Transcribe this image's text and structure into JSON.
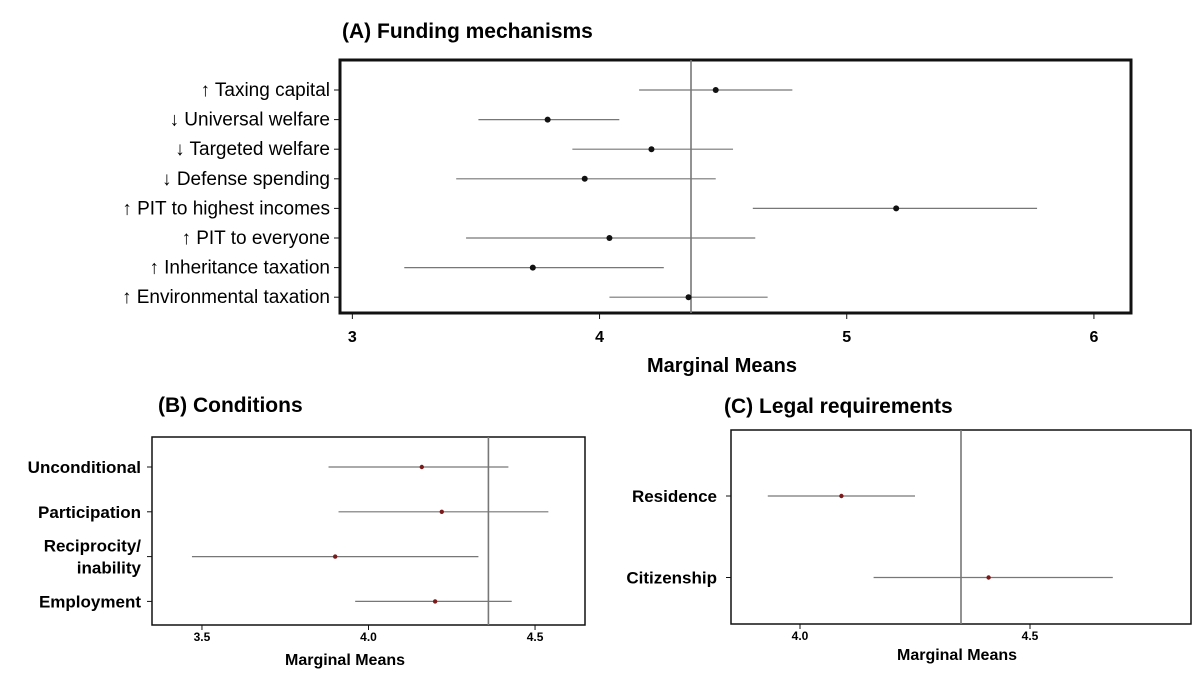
{
  "chart_data": [
    {
      "type": "scatter",
      "title": "(A) Funding mechanisms",
      "xlabel": "Marginal Means",
      "ylabel": "",
      "xlim": [
        2.95,
        6.15
      ],
      "xticks": [
        "3",
        "4",
        "5",
        "6"
      ],
      "reference_line": 4.37,
      "point_color": "#111111",
      "grid": false,
      "categories": [
        {
          "label": "Taxing capital",
          "arrow": "↑",
          "estimate": 4.47,
          "lower": 4.16,
          "upper": 4.78
        },
        {
          "label": "Universal welfare",
          "arrow": "↓",
          "estimate": 3.79,
          "lower": 3.51,
          "upper": 4.08
        },
        {
          "label": "Targeted welfare",
          "arrow": "↓",
          "estimate": 4.21,
          "lower": 3.89,
          "upper": 4.54
        },
        {
          "label": "Defense spending",
          "arrow": "↓",
          "estimate": 3.94,
          "lower": 3.42,
          "upper": 4.47
        },
        {
          "label": "PIT to highest incomes",
          "arrow": "↑",
          "estimate": 5.2,
          "lower": 4.62,
          "upper": 5.77
        },
        {
          "label": "PIT to everyone",
          "arrow": "↑",
          "estimate": 4.04,
          "lower": 3.46,
          "upper": 4.63
        },
        {
          "label": "Inheritance taxation",
          "arrow": "↑",
          "estimate": 3.73,
          "lower": 3.21,
          "upper": 4.26
        },
        {
          "label": "Environmental taxation",
          "arrow": "↑",
          "estimate": 4.36,
          "lower": 4.04,
          "upper": 4.68
        }
      ]
    },
    {
      "type": "scatter",
      "title": "(B) Conditions",
      "xlabel": "Marginal Means",
      "ylabel": "",
      "xlim": [
        3.35,
        4.65
      ],
      "xticks": [
        "3.5",
        "4.0",
        "4.5"
      ],
      "reference_line": 4.36,
      "point_color": "#7a1a1a",
      "grid": false,
      "categories": [
        {
          "label": "Unconditional",
          "estimate": 4.16,
          "lower": 3.88,
          "upper": 4.42
        },
        {
          "label": "Participation",
          "estimate": 4.22,
          "lower": 3.91,
          "upper": 4.54
        },
        {
          "label": "Reciprocity/\ninability",
          "estimate": 3.9,
          "lower": 3.47,
          "upper": 4.33
        },
        {
          "label": "Employment",
          "estimate": 4.2,
          "lower": 3.96,
          "upper": 4.43
        }
      ]
    },
    {
      "type": "scatter",
      "title": "(C) Legal requirements",
      "xlabel": "Marginal Means",
      "ylabel": "",
      "xlim": [
        3.85,
        4.85
      ],
      "xticks": [
        "4.0",
        "4.5"
      ],
      "reference_line": 4.35,
      "point_color": "#7a1a1a",
      "grid": false,
      "categories": [
        {
          "label": "Residence",
          "estimate": 4.09,
          "lower": 3.93,
          "upper": 4.25
        },
        {
          "label": "Citizenship",
          "estimate": 4.41,
          "lower": 4.16,
          "upper": 4.68
        }
      ]
    }
  ]
}
